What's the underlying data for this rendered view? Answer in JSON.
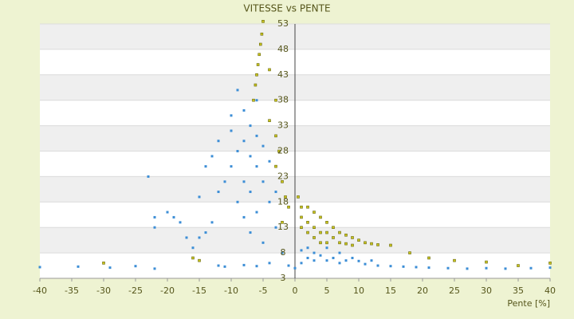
{
  "chart_data": {
    "type": "scatter",
    "title": "VITESSE vs PENTE",
    "x_label": "Pente [%]",
    "xlim": [
      -40,
      40
    ],
    "xticks": [
      -40,
      -35,
      -30,
      -25,
      -20,
      -15,
      -10,
      -5,
      0,
      5,
      10,
      15,
      20,
      25,
      30,
      35,
      40
    ],
    "ylim": [
      3,
      53
    ],
    "yticks": [
      3,
      8,
      13,
      18,
      23,
      28,
      33,
      38,
      43,
      48,
      53
    ],
    "grid": true,
    "series": [
      {
        "color": "#3c8ed6",
        "x": [
          -40,
          -34,
          -29,
          -25,
          -22,
          -22,
          -22,
          -23,
          -20,
          -19,
          -18,
          -17,
          -16,
          -15,
          -14,
          -13,
          -15,
          -14,
          -13,
          -12,
          -12,
          -12,
          -11,
          -11,
          -10,
          -10,
          -10,
          -9,
          -9,
          -9,
          -8,
          -8,
          -8,
          -8,
          -8,
          -7,
          -7,
          -7,
          -7,
          -6,
          -6,
          -6,
          -6,
          -6,
          -5,
          -5,
          -5,
          -4,
          -4,
          -4,
          -3,
          -3,
          -2,
          -1,
          0,
          1,
          1,
          2,
          2,
          3,
          3,
          4,
          5,
          5,
          6,
          7,
          7,
          8,
          9,
          10,
          11,
          12,
          13,
          15,
          17,
          19,
          21,
          24,
          27,
          30,
          33,
          37,
          40
        ],
        "values": [
          5.2,
          5.3,
          5.1,
          5.4,
          4.9,
          13,
          15,
          23,
          16,
          15,
          14,
          11,
          9,
          11,
          12,
          14,
          19,
          25,
          27,
          30,
          20,
          5.5,
          5.3,
          22,
          25,
          32,
          35,
          40,
          28,
          18,
          36,
          30,
          22,
          15,
          5.6,
          33,
          27,
          20,
          12,
          38,
          31,
          25,
          16,
          5.4,
          29,
          22,
          10,
          26,
          18,
          6,
          20,
          13,
          8,
          5.5,
          5,
          6,
          8.5,
          9,
          7,
          8,
          6.5,
          7.5,
          9,
          6.5,
          7,
          8,
          6,
          6.5,
          7,
          6.4,
          5.8,
          6.5,
          5.5,
          5.4,
          5.3,
          5.2,
          5.1,
          5,
          4.9,
          5,
          4.9,
          5,
          5.1
        ]
      },
      {
        "color": "#c9c41c",
        "x": [
          -5,
          -5.2,
          -5.4,
          -5.6,
          -5.8,
          -6,
          -6.2,
          -6.5,
          -4,
          -3,
          -4,
          -3,
          -2.5,
          -3,
          -2,
          -1.5,
          -1,
          -2,
          0.5,
          1,
          1,
          1,
          2,
          2,
          2,
          3,
          3,
          3,
          4,
          4,
          4,
          5,
          5,
          5,
          6,
          6,
          7,
          7,
          8,
          8,
          9,
          9,
          10,
          11,
          12,
          13,
          15,
          18,
          21,
          25,
          30,
          35,
          40,
          -30,
          -16,
          -15
        ],
        "values": [
          53.5,
          51,
          49,
          47,
          45,
          43,
          41,
          38,
          44,
          38,
          34,
          31,
          28,
          25,
          22,
          19,
          17,
          14,
          19,
          17,
          15,
          13,
          17,
          14,
          12,
          16,
          13,
          11,
          15,
          12,
          10,
          14,
          12,
          10,
          13,
          11,
          12,
          10,
          11.5,
          9.8,
          11,
          9.5,
          10.5,
          10,
          9.8,
          9.6,
          9.5,
          8,
          7,
          6.5,
          6.2,
          5.5,
          6,
          6,
          7,
          6.5
        ]
      }
    ]
  }
}
